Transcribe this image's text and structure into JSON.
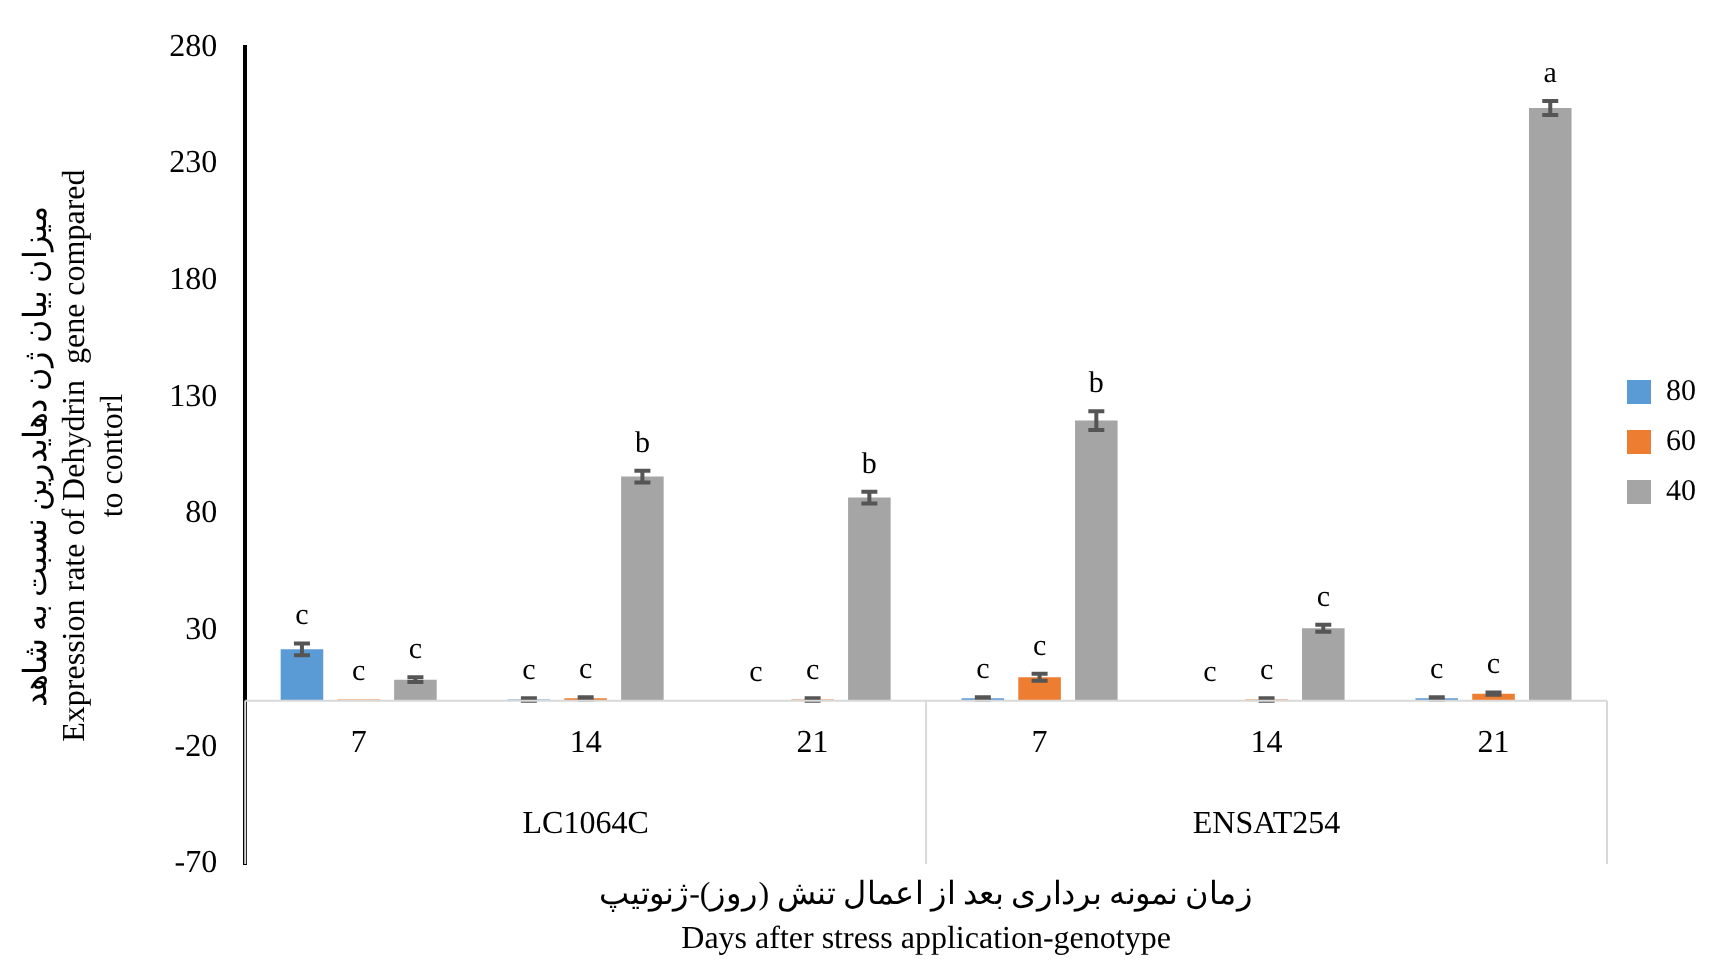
{
  "chart_data": {
    "type": "bar",
    "xlabel": "زمان نمونه برداری بعد از اعمال تنش (روز)-ژنوتیپ\nDays after stress application-genotype",
    "ylabel": "میزان بیان ژن دهایدرین نسبت به شاهد\nExpression rate of Dehydrin  gene compared\nto contorl",
    "categories": [
      "7",
      "14",
      "21",
      "7",
      "14",
      "21"
    ],
    "series": [
      {
        "name": "80",
        "color": "#5b9bd5",
        "values": [
          22,
          0.5,
          0.3,
          1,
          0.3,
          1
        ],
        "errors": [
          2.5,
          0.5,
          null,
          0.5,
          null,
          0.5
        ],
        "value_labels": [
          "c",
          "c",
          "c",
          "c",
          "c",
          "c"
        ]
      },
      {
        "name": "60",
        "color": "#ed7d31",
        "values": [
          0.5,
          1,
          0.5,
          10,
          0.5,
          3
        ],
        "errors": [
          null,
          0.5,
          0.5,
          1.5,
          0.5,
          0.5
        ],
        "value_labels": [
          "c",
          "c",
          "c",
          "c",
          "c",
          "c"
        ]
      },
      {
        "name": "40",
        "color": "#a5a5a5",
        "values": [
          9,
          96,
          87,
          120,
          31,
          254
        ],
        "errors": [
          1,
          2.5,
          2.5,
          4,
          1.5,
          3
        ],
        "value_labels": [
          "c",
          "b",
          "b",
          "b",
          "c",
          "a"
        ]
      }
    ],
    "annotations": [
      "LC1064C",
      "ENSAT254"
    ],
    "ylim": [
      -70,
      280
    ],
    "yticks": [
      -70,
      -20,
      30,
      80,
      130,
      180,
      230,
      280
    ],
    "grid": false,
    "legend": "right"
  }
}
